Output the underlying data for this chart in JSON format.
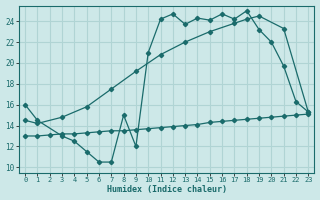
{
  "bg_color": "#cde8e8",
  "grid_color": "#b0d4d4",
  "line_color": "#1a6b6b",
  "xlabel": "Humidex (Indice chaleur)",
  "xlim": [
    -0.5,
    23.5
  ],
  "ylim": [
    9.5,
    25.5
  ],
  "xticks": [
    0,
    1,
    2,
    3,
    4,
    5,
    6,
    7,
    8,
    9,
    10,
    11,
    12,
    13,
    14,
    15,
    16,
    17,
    18,
    19,
    20,
    21,
    22,
    23
  ],
  "yticks": [
    10,
    12,
    14,
    16,
    18,
    20,
    22,
    24
  ],
  "line1_x": [
    0,
    1,
    3,
    4,
    5,
    6,
    7,
    8,
    9,
    10,
    11,
    12,
    13,
    14,
    15,
    16,
    17,
    18,
    19,
    20,
    21,
    22,
    23
  ],
  "line1_y": [
    16.0,
    14.5,
    13.0,
    12.5,
    11.5,
    10.5,
    10.5,
    15.0,
    12.0,
    21.0,
    24.2,
    24.7,
    23.7,
    24.3,
    24.1,
    24.7,
    24.2,
    25.0,
    23.2,
    22.0,
    19.7,
    16.3,
    15.3
  ],
  "line2_x": [
    0,
    1,
    3,
    5,
    7,
    9,
    11,
    13,
    15,
    17,
    18,
    19,
    21,
    23
  ],
  "line2_y": [
    14.5,
    14.2,
    14.8,
    15.8,
    17.5,
    19.2,
    20.8,
    22.0,
    23.0,
    23.8,
    24.2,
    24.5,
    23.3,
    15.3
  ],
  "line3_x": [
    0,
    1,
    2,
    3,
    4,
    5,
    6,
    7,
    8,
    9,
    10,
    11,
    12,
    13,
    14,
    15,
    16,
    17,
    18,
    19,
    20,
    21,
    22,
    23
  ],
  "line3_y": [
    13.0,
    13.0,
    13.1,
    13.2,
    13.2,
    13.3,
    13.4,
    13.5,
    13.5,
    13.6,
    13.7,
    13.8,
    13.9,
    14.0,
    14.1,
    14.3,
    14.4,
    14.5,
    14.6,
    14.7,
    14.8,
    14.9,
    15.0,
    15.1
  ]
}
